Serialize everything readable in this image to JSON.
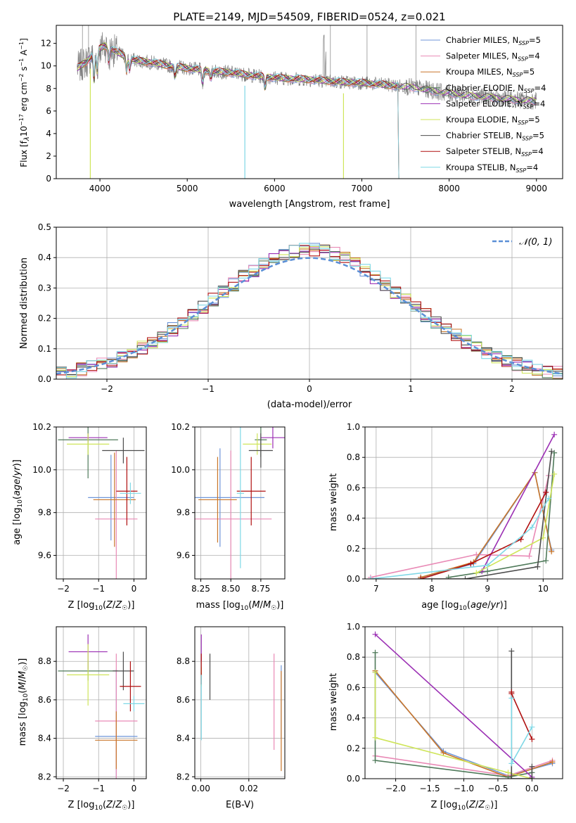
{
  "colors": {
    "Chabrier MILES": "#6f96d8",
    "Salpeter MILES": "#e98ab6",
    "Kroupa MILES": "#c9762a",
    "Chabrier ELODIE": "#4f7a5a",
    "Salpeter ELODIE": "#9b2fb4",
    "Kroupa ELODIE": "#cfe55a",
    "Chabrier STELIB": "#4d4d4d",
    "Salpeter STELIB": "#b01010",
    "Kroupa STELIB": "#7fd8e6",
    "normal": "#5b8fd6",
    "spectrum": "#808080"
  },
  "chart_data": [
    {
      "id": "spectrum",
      "type": "line",
      "title": "PLATE=2149, MJD=54509, FIBERID=0524, z=0.021",
      "xlabel": "wavelength [Angstrom, rest frame]",
      "ylabel": "Flux [f_λ10^-17 erg cm^-2 s^-1 A^-1]",
      "xlim": [
        3500,
        9300
      ],
      "ylim": [
        0,
        13.6
      ],
      "xticks": [
        4000,
        5000,
        6000,
        7000,
        8000,
        9000
      ],
      "yticks": [
        0,
        2,
        4,
        6,
        8,
        10,
        12
      ],
      "legend_position": "top-right",
      "legend": [
        {
          "model": "Chabrier MILES",
          "n": "5"
        },
        {
          "model": "Salpeter MILES",
          "n": "4"
        },
        {
          "model": "Kroupa MILES",
          "n": "5"
        },
        {
          "model": "Chabrier ELODIE",
          "n": "4"
        },
        {
          "model": "Salpeter ELODIE",
          "n": "4"
        },
        {
          "model": "Kroupa ELODIE",
          "n": "5"
        },
        {
          "model": "Chabrier STELIB",
          "n": "5"
        },
        {
          "model": "Salpeter STELIB",
          "n": "4"
        },
        {
          "model": "Kroupa STELIB",
          "n": "4"
        }
      ],
      "continuum": {
        "x": [
          3740,
          3850,
          3950,
          4050,
          4200,
          4400,
          4600,
          4800,
          5000,
          5200,
          5500,
          5800,
          6100,
          6400,
          6700,
          7000,
          7300,
          7600,
          7900,
          8200,
          8500,
          8800,
          9000
        ],
        "y": [
          9.8,
          10.4,
          11.3,
          11.8,
          11.2,
          10.5,
          10.3,
          10.0,
          9.8,
          9.6,
          9.4,
          9.1,
          8.9,
          8.8,
          8.6,
          8.5,
          8.3,
          8.1,
          7.7,
          7.4,
          7.2,
          7.0,
          6.9
        ]
      }
    },
    {
      "id": "residuals",
      "type": "histogram",
      "xlabel": "(data-model)/error",
      "ylabel": "Normed distribution",
      "xlim": [
        -2.5,
        2.5
      ],
      "ylim": [
        0,
        0.5
      ],
      "xticks": [
        -2,
        -1,
        0,
        1,
        2
      ],
      "yticks": [
        0.0,
        0.1,
        0.2,
        0.3,
        0.4,
        0.5
      ],
      "legend_label": "𝒩(0, 1)",
      "legend_position": "top-right",
      "bin_width": 0.1
    },
    {
      "id": "age-vs-Z",
      "type": "errorbar",
      "xlabel": "Z [log10(Z/Z☉)]",
      "ylabel": "age [log10(age/yr)]",
      "xlim": [
        -2.2,
        0.35
      ],
      "ylim": [
        9.49,
        10.2
      ],
      "xticks": [
        -2,
        -1,
        0
      ],
      "yticks": [
        9.6,
        9.8,
        10.0,
        10.2
      ],
      "points": [
        {
          "model": "Chabrier MILES",
          "x": -0.65,
          "xerr": 0.65,
          "y": 9.87,
          "yerr": 0.2
        },
        {
          "model": "Salpeter MILES",
          "x": -0.5,
          "xerr": 0.6,
          "y": 9.77,
          "yerr": 0.32
        },
        {
          "model": "Kroupa MILES",
          "x": -0.55,
          "xerr": 0.6,
          "y": 9.86,
          "yerr": 0.22
        },
        {
          "model": "Chabrier ELODIE",
          "x": -1.3,
          "xerr": 0.85,
          "y": 10.14,
          "yerr": 0.18
        },
        {
          "model": "Salpeter ELODIE",
          "x": -1.3,
          "xerr": 0.55,
          "y": 10.15,
          "yerr": 0.02
        },
        {
          "model": "Kroupa ELODIE",
          "x": -1.3,
          "xerr": 0.6,
          "y": 10.12,
          "yerr": 0.05
        },
        {
          "model": "Chabrier STELIB",
          "x": -0.3,
          "xerr": 0.6,
          "y": 10.09,
          "yerr": 0.06
        },
        {
          "model": "Salpeter STELIB",
          "x": -0.2,
          "xerr": 0.3,
          "y": 9.9,
          "yerr": 0.16
        },
        {
          "model": "Kroupa STELIB",
          "x": -0.1,
          "xerr": 0.3,
          "y": 9.89,
          "yerr": 0.05
        }
      ]
    },
    {
      "id": "age-vs-mass",
      "type": "errorbar",
      "xlabel": "mass [log10(M/M☉)]",
      "ylabel": "",
      "xlim": [
        8.2,
        8.95
      ],
      "ylim": [
        9.49,
        10.2
      ],
      "xticks": [
        8.25,
        8.5,
        8.75
      ],
      "yticks": [
        9.6,
        9.8,
        10.0,
        10.2
      ],
      "points": [
        {
          "model": "Chabrier MILES",
          "x": 8.41,
          "xerr": 0.37,
          "y": 9.87,
          "yerr": 0.23
        },
        {
          "model": "Salpeter MILES",
          "x": 8.5,
          "xerr": 0.34,
          "y": 9.77,
          "yerr": 0.32
        },
        {
          "model": "Kroupa MILES",
          "x": 8.39,
          "xerr": 0.16,
          "y": 9.86,
          "yerr": 0.2
        },
        {
          "model": "Chabrier ELODIE",
          "x": 8.75,
          "xerr": 0.05,
          "y": 10.14,
          "yerr": 0.08
        },
        {
          "model": "Salpeter ELODIE",
          "x": 8.85,
          "xerr": 0.1,
          "y": 10.15,
          "yerr": 0.05
        },
        {
          "model": "Kroupa ELODIE",
          "x": 8.72,
          "xerr": 0.12,
          "y": 10.12,
          "yerr": 0.05
        },
        {
          "model": "Chabrier STELIB",
          "x": 8.75,
          "xerr": 0.1,
          "y": 10.09,
          "yerr": 0.08
        },
        {
          "model": "Salpeter STELIB",
          "x": 8.67,
          "xerr": 0.12,
          "y": 9.9,
          "yerr": 0.16
        },
        {
          "model": "Kroupa STELIB",
          "x": 8.58,
          "xerr": 0.03,
          "y": 9.89,
          "yerr": 0.35
        }
      ]
    },
    {
      "id": "weight-vs-age",
      "type": "line",
      "xlabel": "age [log10(age/yr)]",
      "ylabel": "mass weight",
      "xlim": [
        6.8,
        10.35
      ],
      "ylim": [
        0,
        1
      ],
      "xticks": [
        7,
        8,
        9,
        10
      ],
      "yticks": [
        0.0,
        0.2,
        0.4,
        0.6,
        0.8,
        1.0
      ],
      "series": [
        {
          "model": "Chabrier MILES",
          "x": [
            7.8,
            8.75,
            9.85,
            10.15
          ],
          "y": [
            0.01,
            0.1,
            0.7,
            0.19
          ]
        },
        {
          "model": "Salpeter MILES",
          "x": [
            6.9,
            8.8,
            9.75,
            10.1
          ],
          "y": [
            0.01,
            0.16,
            0.15,
            0.68
          ]
        },
        {
          "model": "Kroupa MILES",
          "x": [
            7.8,
            8.75,
            9.85,
            10.15
          ],
          "y": [
            0.01,
            0.11,
            0.7,
            0.18
          ]
        },
        {
          "model": "Chabrier ELODIE",
          "x": [
            8.3,
            9.0,
            10.05,
            10.2
          ],
          "y": [
            0.01,
            0.05,
            0.12,
            0.83
          ]
        },
        {
          "model": "Salpeter ELODIE",
          "x": [
            8.9,
            10.2
          ],
          "y": [
            0.05,
            0.95
          ]
        },
        {
          "model": "Kroupa ELODIE",
          "x": [
            8.8,
            10.0,
            10.2
          ],
          "y": [
            0.04,
            0.27,
            0.69
          ]
        },
        {
          "model": "Chabrier STELIB",
          "x": [
            7.8,
            8.6,
            9.9,
            10.15
          ],
          "y": [
            0.0,
            0.0,
            0.08,
            0.84
          ]
        },
        {
          "model": "Salpeter STELIB",
          "x": [
            7.8,
            8.7,
            9.6,
            10.05
          ],
          "y": [
            0.0,
            0.1,
            0.26,
            0.57
          ]
        },
        {
          "model": "Kroupa STELIB",
          "x": [
            6.9,
            9.0,
            9.8,
            10.1
          ],
          "y": [
            0.0,
            0.09,
            0.34,
            0.53
          ]
        }
      ]
    },
    {
      "id": "mass-vs-Z",
      "type": "errorbar",
      "xlabel": "Z [log10(Z/Z☉)]",
      "ylabel": "mass [log10(M/M☉)]",
      "xlim": [
        -2.2,
        0.35
      ],
      "ylim": [
        8.19,
        8.98
      ],
      "xticks": [
        -2,
        -1,
        0
      ],
      "yticks": [
        8.2,
        8.4,
        8.6,
        8.8
      ],
      "points": [
        {
          "model": "Chabrier MILES",
          "x": -0.5,
          "xerr": 0.6,
          "y": 8.41,
          "yerr": 0.35
        },
        {
          "model": "Salpeter MILES",
          "x": -0.5,
          "xerr": 0.6,
          "y": 8.49,
          "yerr": 0.35
        },
        {
          "model": "Kroupa MILES",
          "x": -0.5,
          "xerr": 0.6,
          "y": 8.39,
          "yerr": 0.15
        },
        {
          "model": "Chabrier ELODIE",
          "x": -1.3,
          "xerr": 0.85,
          "y": 8.75,
          "yerr": 0.05
        },
        {
          "model": "Salpeter ELODIE",
          "x": -1.3,
          "xerr": 0.55,
          "y": 8.85,
          "yerr": 0.09
        },
        {
          "model": "Kroupa ELODIE",
          "x": -1.3,
          "xerr": 0.6,
          "y": 8.73,
          "yerr": 0.16
        },
        {
          "model": "Chabrier STELIB",
          "x": -0.3,
          "xerr": 0.3,
          "y": 8.75,
          "yerr": 0.1
        },
        {
          "model": "Salpeter STELIB",
          "x": -0.1,
          "xerr": 0.3,
          "y": 8.67,
          "yerr": 0.13
        },
        {
          "model": "Kroupa STELIB",
          "x": 0.0,
          "xerr": 0.3,
          "y": 8.58,
          "yerr": 0.04
        }
      ]
    },
    {
      "id": "mass-vs-ebv",
      "type": "errorbar",
      "xlabel": "E(B-V)",
      "ylabel": "",
      "xlim": [
        -0.0025,
        0.035
      ],
      "ylim": [
        8.19,
        8.98
      ],
      "xticks": [
        0.0,
        0.02
      ],
      "yticks": [
        8.2,
        8.4,
        8.6,
        8.8
      ],
      "points": [
        {
          "model": "Chabrier MILES",
          "x": 0.0335,
          "xerr": 0,
          "y": 8.59,
          "yerr": 0.19
        },
        {
          "model": "Salpeter MILES",
          "x": 0.0305,
          "xerr": 0,
          "y": 8.59,
          "yerr": 0.25
        },
        {
          "model": "Kroupa MILES",
          "x": 0.0335,
          "xerr": 0,
          "y": 8.49,
          "yerr": 0.26
        },
        {
          "model": "Chabrier ELODIE",
          "x": 0.0002,
          "xerr": 0,
          "y": 8.72,
          "yerr": 0.02
        },
        {
          "model": "Salpeter ELODIE",
          "x": 0.0002,
          "xerr": 0,
          "y": 8.87,
          "yerr": 0.07
        },
        {
          "model": "Kroupa ELODIE",
          "x": 0.0002,
          "xerr": 0,
          "y": 8.72,
          "yerr": 0.05
        },
        {
          "model": "Chabrier STELIB",
          "x": 0.0038,
          "xerr": 0,
          "y": 8.72,
          "yerr": 0.12
        },
        {
          "model": "Salpeter STELIB",
          "x": 0.0002,
          "xerr": 0,
          "y": 8.76,
          "yerr": 0.08
        },
        {
          "model": "Kroupa STELIB",
          "x": 0.0002,
          "xerr": 0,
          "y": 8.56,
          "yerr": 0.17
        }
      ]
    },
    {
      "id": "weight-vs-Z",
      "type": "line",
      "xlabel": "Z [log10(Z/Z☉)]",
      "ylabel": "mass weight",
      "xlim": [
        -2.45,
        0.45
      ],
      "ylim": [
        0,
        1
      ],
      "xticks": [
        -2.0,
        -1.5,
        -1.0,
        -0.5,
        0.0
      ],
      "yticks": [
        0.0,
        0.2,
        0.4,
        0.6,
        0.8,
        1.0
      ],
      "series": [
        {
          "model": "Chabrier MILES",
          "x": [
            -2.3,
            -1.3,
            -0.35,
            0.3
          ],
          "y": [
            0.7,
            0.18,
            0.02,
            0.1
          ]
        },
        {
          "model": "Salpeter MILES",
          "x": [
            -2.3,
            -0.35,
            0.3
          ],
          "y": [
            0.15,
            0.02,
            0.12
          ]
        },
        {
          "model": "Kroupa MILES",
          "x": [
            -2.3,
            -1.3,
            -0.35,
            0.3
          ],
          "y": [
            0.71,
            0.17,
            0.01,
            0.11
          ]
        },
        {
          "model": "Chabrier ELODIE",
          "x": [
            -2.3,
            -2.3,
            -0.35,
            0.0
          ],
          "y": [
            0.83,
            0.12,
            0.01,
            0.04
          ]
        },
        {
          "model": "Salpeter ELODIE",
          "x": [
            -2.3,
            0.0
          ],
          "y": [
            0.95,
            0.01
          ]
        },
        {
          "model": "Kroupa ELODIE",
          "x": [
            -2.3,
            -2.3,
            -0.35,
            0.0
          ],
          "y": [
            0.7,
            0.27,
            0.04,
            0.0
          ]
        },
        {
          "model": "Chabrier STELIB",
          "x": [
            -0.3,
            -0.3,
            0.0,
            0.0
          ],
          "y": [
            0.84,
            0.0,
            0.0,
            0.08
          ]
        },
        {
          "model": "Salpeter STELIB",
          "x": [
            -0.3,
            -0.3,
            0.0
          ],
          "y": [
            0.57,
            0.56,
            0.26
          ]
        },
        {
          "model": "Kroupa STELIB",
          "x": [
            -0.3,
            -0.3,
            0.0
          ],
          "y": [
            0.53,
            0.1,
            0.34
          ]
        }
      ]
    }
  ]
}
